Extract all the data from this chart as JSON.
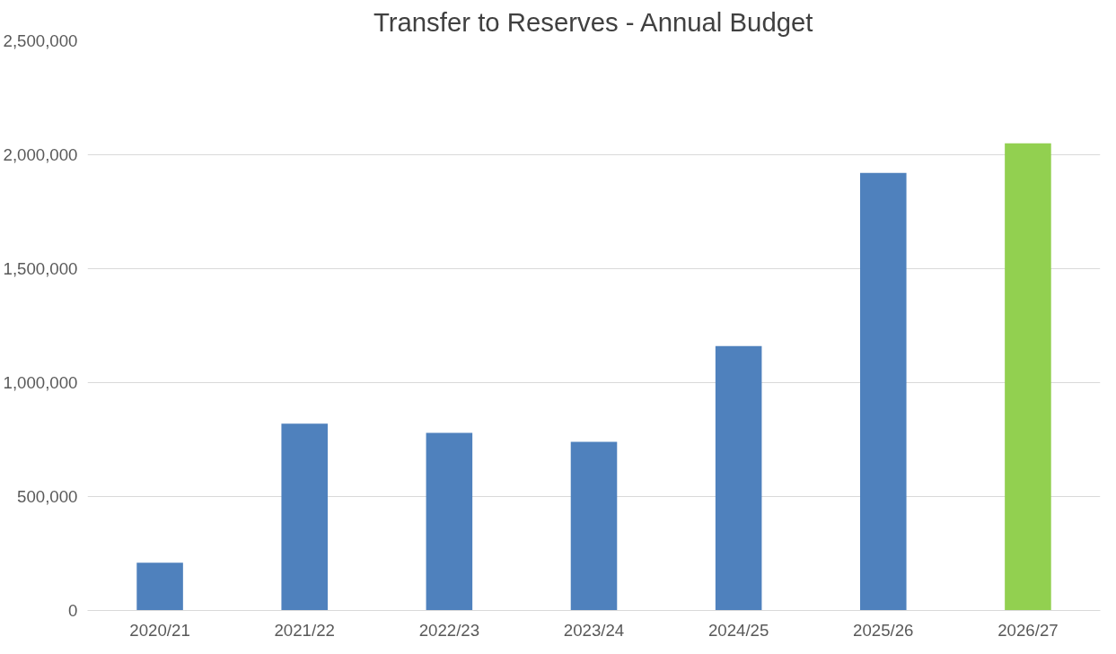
{
  "chart_data": {
    "type": "bar",
    "title": "Transfer to Reserves - Annual Budget",
    "categories": [
      "2020/21",
      "2021/22",
      "2022/23",
      "2023/24",
      "2024/25",
      "2025/26",
      "2026/27"
    ],
    "values": [
      210000,
      820000,
      780000,
      740000,
      1160000,
      1920000,
      2050000
    ],
    "colors": [
      "#4f81bd",
      "#4f81bd",
      "#4f81bd",
      "#4f81bd",
      "#4f81bd",
      "#4f81bd",
      "#92d050"
    ],
    "ylim": [
      0,
      2500000
    ],
    "yticks": [
      {
        "value": 0,
        "label": "0"
      },
      {
        "value": 500000,
        "label": "500,000"
      },
      {
        "value": 1000000,
        "label": "1,000,000"
      },
      {
        "value": 1500000,
        "label": "1,500,000"
      },
      {
        "value": 2000000,
        "label": "2,000,000"
      },
      {
        "value": 2500000,
        "label": "2,500,000"
      }
    ],
    "grid": "y"
  }
}
